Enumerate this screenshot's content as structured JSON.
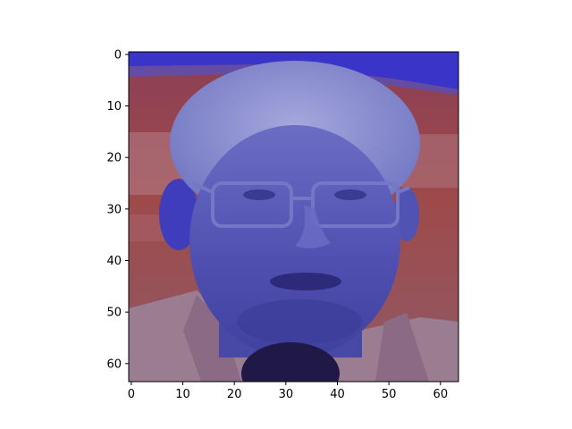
{
  "figure": {
    "background": "#ffffff",
    "image_type": "imshow",
    "image_shape": [
      64,
      64
    ],
    "subject": "portrait",
    "colors": {
      "background_red": "#9e4a4a",
      "stripe_blue": "#3a35c8",
      "skin_blue": "#5a5ab5",
      "hair_light": "#8c8fd0",
      "shirt": "#9b7d92",
      "microphone": "#201846"
    }
  },
  "chart_data": {
    "type": "heatmap",
    "title": "",
    "xlabel": "",
    "ylabel": "",
    "xlim": [
      -0.5,
      63.5
    ],
    "ylim": [
      63.5,
      -0.5
    ],
    "x_ticks": [
      0,
      10,
      20,
      30,
      40,
      50,
      60
    ],
    "y_ticks": [
      0,
      10,
      20,
      30,
      40,
      50,
      60
    ],
    "x_tick_labels": [
      "0",
      "10",
      "20",
      "30",
      "40",
      "50",
      "60"
    ],
    "y_tick_labels": [
      "0",
      "10",
      "20",
      "30",
      "40",
      "50",
      "60"
    ],
    "grid": false
  }
}
